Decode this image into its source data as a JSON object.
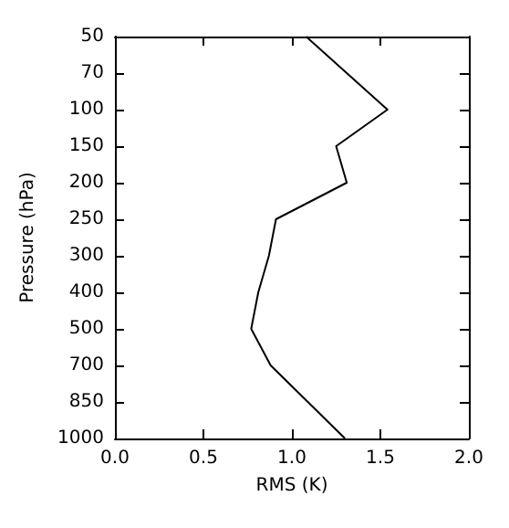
{
  "chart_data": {
    "type": "line",
    "orientation": "horizontal",
    "xlabel": "RMS (K)",
    "ylabel": "Pressure (hPa)",
    "categories": [
      "50",
      "70",
      "100",
      "150",
      "200",
      "250",
      "300",
      "400",
      "500",
      "700",
      "850",
      "1000"
    ],
    "values": [
      1.08,
      1.31,
      1.54,
      1.25,
      1.31,
      0.91,
      0.87,
      0.81,
      0.77,
      0.88,
      1.09,
      1.3
    ],
    "color": "#000000",
    "xlim": [
      0,
      2
    ],
    "xticks": [
      {
        "value": 0,
        "label": "0.0"
      },
      {
        "value": 0.5,
        "label": "0.5"
      },
      {
        "value": 1,
        "label": "1.0"
      },
      {
        "value": 1.5,
        "label": "1.5"
      },
      {
        "value": 2,
        "label": "2.0"
      }
    ],
    "grid": false
  }
}
